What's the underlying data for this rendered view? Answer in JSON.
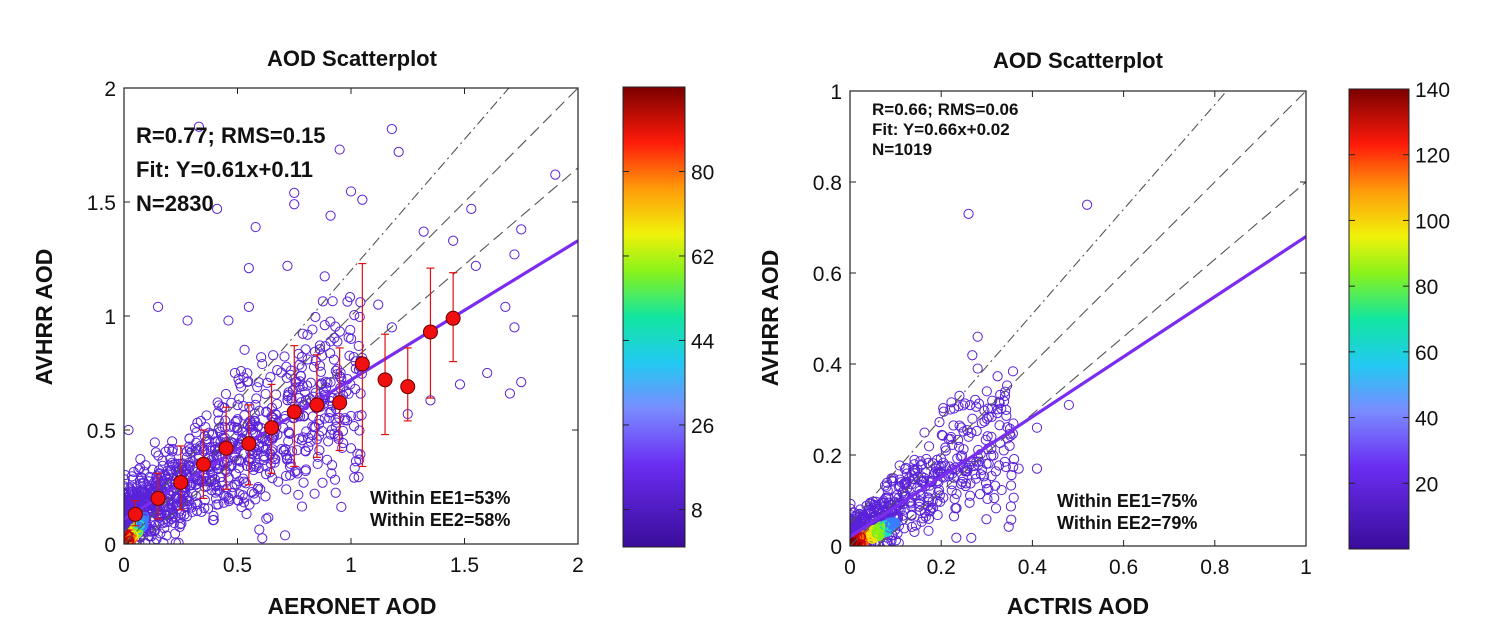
{
  "chart_data": [
    {
      "type": "scatter",
      "title": "AOD Scatterplot",
      "xlabel": "AERONET AOD",
      "ylabel": "AVHRR AOD",
      "xlim": [
        0,
        2
      ],
      "ylim": [
        0,
        2
      ],
      "xticks": [
        "0",
        "0.5",
        "1",
        "1.5",
        "2"
      ],
      "yticks": [
        "0",
        "0.5",
        "1",
        "1.5",
        "2"
      ],
      "stats": [
        "R=0.77; RMS=0.15",
        "Fit: Y=0.61x+0.11",
        "N=2830"
      ],
      "ee": [
        "Within EE1=53%",
        "Within EE2=58%"
      ],
      "fit": {
        "slope": 0.61,
        "intercept": 0.11,
        "color": "#7a2cf0"
      },
      "reference_lines": [
        {
          "style": "dash-dot",
          "slope": 1.15,
          "intercept": 0.05
        },
        {
          "style": "dash",
          "slope": 1.0,
          "intercept": 0.0
        },
        {
          "style": "dash",
          "slope": 0.85,
          "intercept": -0.05
        }
      ],
      "binned_means": [
        {
          "x": 0.05,
          "y": 0.13,
          "lo": 0.08,
          "hi": 0.19
        },
        {
          "x": 0.15,
          "y": 0.2,
          "lo": 0.11,
          "hi": 0.31
        },
        {
          "x": 0.25,
          "y": 0.27,
          "lo": 0.15,
          "hi": 0.43
        },
        {
          "x": 0.35,
          "y": 0.35,
          "lo": 0.2,
          "hi": 0.5
        },
        {
          "x": 0.45,
          "y": 0.42,
          "lo": 0.24,
          "hi": 0.6
        },
        {
          "x": 0.55,
          "y": 0.44,
          "lo": 0.26,
          "hi": 0.61
        },
        {
          "x": 0.65,
          "y": 0.51,
          "lo": 0.31,
          "hi": 0.7
        },
        {
          "x": 0.75,
          "y": 0.58,
          "lo": 0.34,
          "hi": 0.87
        },
        {
          "x": 0.85,
          "y": 0.61,
          "lo": 0.38,
          "hi": 0.83
        },
        {
          "x": 0.95,
          "y": 0.62,
          "lo": 0.41,
          "hi": 0.86
        },
        {
          "x": 1.05,
          "y": 0.79,
          "lo": 0.34,
          "hi": 1.23
        },
        {
          "x": 1.15,
          "y": 0.72,
          "lo": 0.48,
          "hi": 0.92
        },
        {
          "x": 1.25,
          "y": 0.69,
          "lo": 0.54,
          "hi": 0.86
        },
        {
          "x": 1.35,
          "y": 0.93,
          "lo": 0.64,
          "hi": 1.21
        },
        {
          "x": 1.45,
          "y": 0.99,
          "lo": 0.8,
          "hi": 1.19
        }
      ],
      "scatter_points": [
        [
          0.33,
          1.83
        ],
        [
          1.18,
          1.82
        ],
        [
          0.95,
          1.73
        ],
        [
          1.21,
          1.72
        ],
        [
          0.75,
          1.54
        ],
        [
          1.05,
          1.51
        ],
        [
          0.41,
          1.47
        ],
        [
          0.75,
          1.49
        ],
        [
          0.91,
          1.44
        ],
        [
          0.58,
          1.39
        ],
        [
          1.32,
          1.37
        ],
        [
          1.53,
          1.47
        ],
        [
          1.9,
          1.62
        ],
        [
          1.75,
          1.38
        ],
        [
          1.45,
          1.33
        ],
        [
          1.55,
          1.22
        ],
        [
          1.72,
          1.27
        ],
        [
          0.55,
          1.21
        ],
        [
          0.72,
          1.22
        ],
        [
          0.15,
          1.04
        ],
        [
          0.55,
          1.04
        ],
        [
          1.12,
          1.05
        ],
        [
          1.68,
          1.04
        ],
        [
          1.72,
          0.95
        ],
        [
          1.6,
          0.75
        ],
        [
          1.7,
          0.66
        ],
        [
          1.75,
          0.71
        ],
        [
          1.48,
          0.7
        ],
        [
          0.46,
          0.98
        ],
        [
          0.28,
          0.98
        ],
        [
          1.18,
          0.95
        ],
        [
          1.35,
          0.63
        ],
        [
          1.25,
          0.57
        ],
        [
          0.91,
          0.48
        ],
        [
          0.02,
          0.5
        ],
        [
          0.1,
          0.22
        ],
        [
          0.2,
          0.16
        ],
        [
          0.3,
          0.14
        ],
        [
          0.45,
          0.21
        ],
        [
          0.6,
          0.24
        ],
        [
          0.8,
          0.32
        ],
        [
          1.0,
          0.42
        ]
      ],
      "cloud_seed": 7,
      "cloud_count": 1100,
      "colorbar": {
        "ticks": [
          "8",
          "26",
          "44",
          "62",
          "80"
        ],
        "min": 0,
        "max": 98
      }
    },
    {
      "type": "scatter",
      "title": "AOD Scatterplot",
      "xlabel": "ACTRIS AOD",
      "ylabel": "AVHRR AOD",
      "xlim": [
        0,
        1
      ],
      "ylim": [
        0,
        1
      ],
      "xticks": [
        "0",
        "0.2",
        "0.4",
        "0.6",
        "0.8",
        "1"
      ],
      "yticks": [
        "0",
        "0.2",
        "0.4",
        "0.6",
        "0.8",
        "1"
      ],
      "stats": [
        "R=0.66; RMS=0.06",
        "Fit: Y=0.66x+0.02",
        "N=1019"
      ],
      "ee": [
        "Within EE1=75%",
        "Within EE2=79%"
      ],
      "fit": {
        "slope": 0.66,
        "intercept": 0.02,
        "color": "#7a2cf0"
      },
      "reference_lines": [
        {
          "style": "dash-dot",
          "slope": 1.15,
          "intercept": 0.05
        },
        {
          "style": "dash",
          "slope": 1.0,
          "intercept": 0.0
        },
        {
          "style": "dash",
          "slope": 0.85,
          "intercept": -0.05
        }
      ],
      "scatter_points": [
        [
          0.26,
          0.73
        ],
        [
          0.52,
          0.75
        ],
        [
          0.28,
          0.46
        ],
        [
          0.28,
          0.39
        ],
        [
          0.34,
          0.33
        ],
        [
          0.3,
          0.34
        ],
        [
          0.48,
          0.31
        ],
        [
          0.22,
          0.3
        ],
        [
          0.41,
          0.26
        ],
        [
          0.35,
          0.22
        ],
        [
          0.37,
          0.17
        ],
        [
          0.41,
          0.17
        ],
        [
          0.24,
          0.33
        ],
        [
          0.3,
          0.28
        ],
        [
          0.31,
          0.24
        ],
        [
          0.26,
          0.24
        ]
      ],
      "cloud_seed": 11,
      "cloud_count": 650,
      "colorbar": {
        "ticks": [
          "20",
          "40",
          "60",
          "80",
          "100",
          "120",
          "140"
        ],
        "min": 0,
        "max": 140
      }
    }
  ]
}
